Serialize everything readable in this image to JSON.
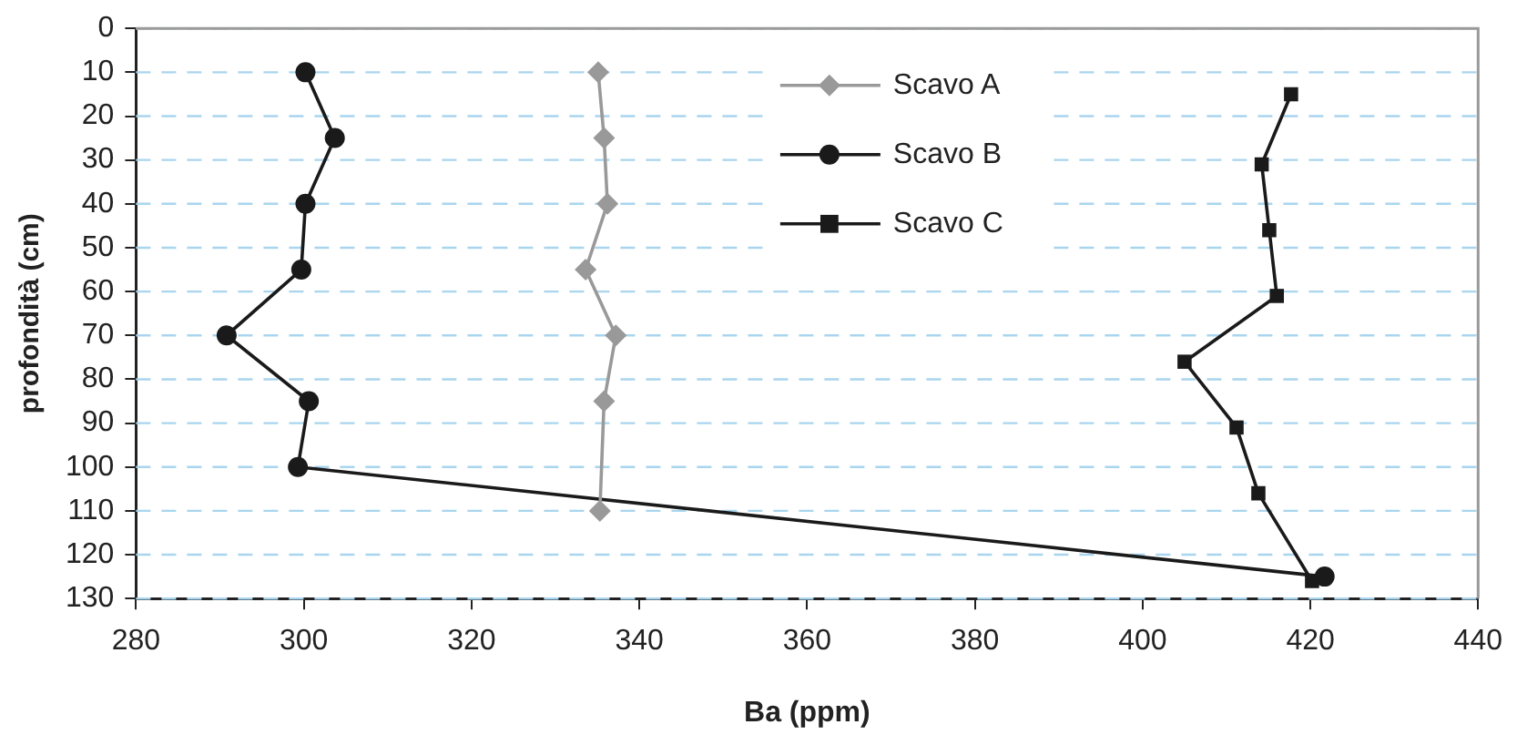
{
  "chart_data": {
    "type": "line",
    "xlabel": "Ba (ppm)",
    "ylabel": "profondità (cm)",
    "xlim": [
      280,
      440
    ],
    "xticks": [
      280,
      300,
      320,
      340,
      360,
      380,
      400,
      420,
      440
    ],
    "ylim": [
      130,
      0
    ],
    "yticks": [
      0,
      10,
      20,
      30,
      40,
      50,
      60,
      70,
      80,
      90,
      100,
      110,
      120,
      130
    ],
    "grid": "y",
    "legend": "top",
    "series": [
      {
        "name": "Scavo A",
        "color": "#999999",
        "marker": "diamond",
        "x": [
          335.1,
          335.8,
          336.2,
          333.6,
          337.2,
          335.8,
          335.3
        ],
        "values": [
          10,
          25,
          40,
          55,
          70,
          85,
          110
        ]
      },
      {
        "name": "Scavo B",
        "color": "#1a1a1a",
        "marker": "circle",
        "x": [
          300.2,
          303.7,
          300.2,
          299.7,
          290.8,
          300.6,
          299.3,
          421.7
        ],
        "values": [
          10,
          25,
          40,
          55,
          70,
          85,
          100,
          125
        ]
      },
      {
        "name": "Scavo C",
        "color": "#1a1a1a",
        "marker": "square",
        "x": [
          417.7,
          414.2,
          415.1,
          416,
          405,
          411.2,
          413.8,
          420.2
        ],
        "values": [
          15,
          31,
          46,
          61,
          76,
          91,
          106,
          126
        ]
      }
    ]
  }
}
